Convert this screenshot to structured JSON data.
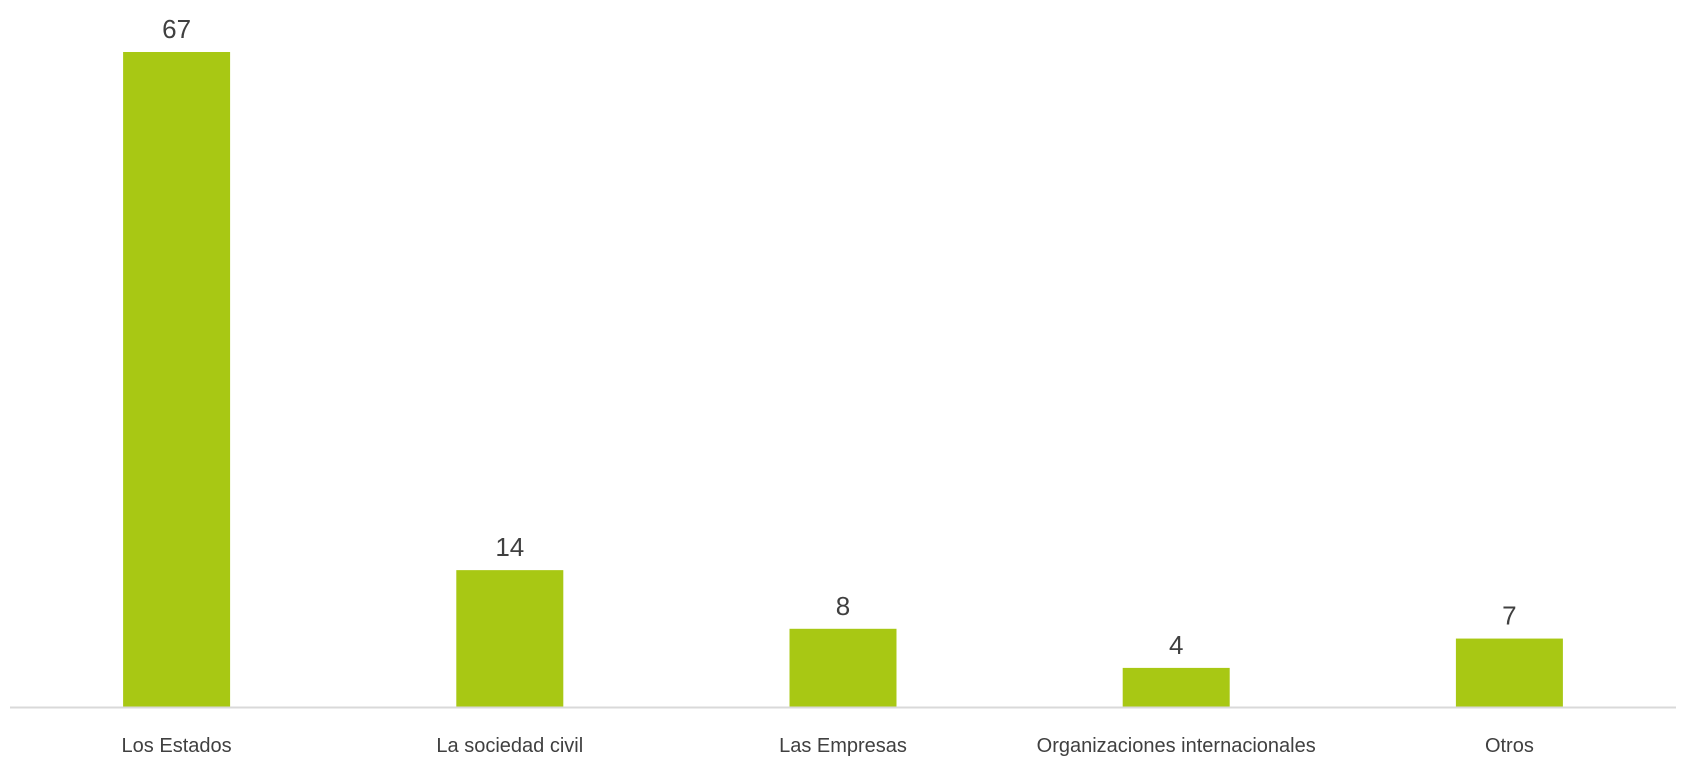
{
  "chart_data": {
    "type": "bar",
    "categories": [
      "Los Estados",
      "La sociedad civil",
      "Las Empresas",
      "Organizaciones internacionales",
      "Otros"
    ],
    "values": [
      67,
      14,
      8,
      4,
      7
    ],
    "ylim": [
      0,
      67
    ],
    "grid": false,
    "legend": "none",
    "title": "",
    "xlabel": "",
    "ylabel": "",
    "colors": {
      "bar": "#a8c814",
      "axis": "#d9d9d9",
      "text": "#404040"
    }
  }
}
